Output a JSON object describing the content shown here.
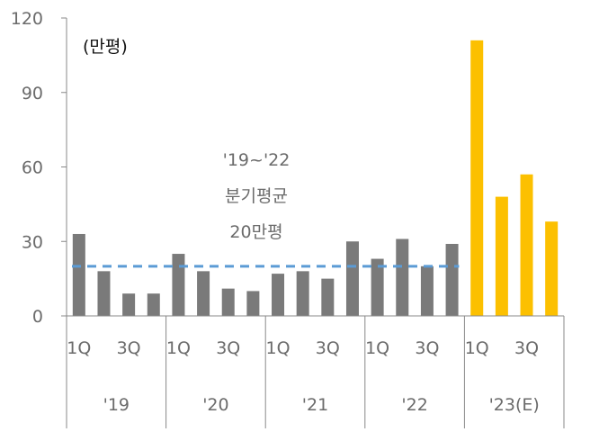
{
  "chart_data": {
    "type": "bar",
    "unit_label": "(만평)",
    "yticks": [
      "0",
      "30",
      "60",
      "90",
      "120"
    ],
    "ylim": [
      0,
      120
    ],
    "grid": false,
    "categories": [
      "1Q",
      "2Q",
      "3Q",
      "4Q",
      "1Q",
      "2Q",
      "3Q",
      "4Q",
      "1Q",
      "2Q",
      "3Q",
      "4Q",
      "1Q",
      "2Q",
      "3Q",
      "4Q",
      "1Q",
      "2Q",
      "3Q",
      "4Q"
    ],
    "xtick_labels": [
      "1Q",
      "",
      "3Q",
      "",
      "1Q",
      "",
      "3Q",
      "",
      "1Q",
      "",
      "3Q",
      "",
      "1Q",
      "",
      "3Q",
      "",
      "1Q",
      "",
      "3Q",
      ""
    ],
    "year_groups": [
      {
        "label": "'19",
        "start": 0,
        "count": 4
      },
      {
        "label": "'20",
        "start": 4,
        "count": 4
      },
      {
        "label": "'21",
        "start": 8,
        "count": 4
      },
      {
        "label": "'22",
        "start": 12,
        "count": 4
      },
      {
        "label": "'23(E)",
        "start": 16,
        "count": 4
      }
    ],
    "values": [
      33,
      18,
      9,
      9,
      25,
      18,
      11,
      10,
      17,
      18,
      15,
      30,
      23,
      31,
      20,
      29,
      111,
      48,
      57,
      38
    ],
    "bar_colors": {
      "actual": "#7a7a7a",
      "estimate": "#fcc000"
    },
    "estimate_from_index": 16,
    "average": {
      "value": 20,
      "color": "#5b9bd5",
      "label_lines": [
        "'19~'22",
        "분기평균",
        "20만평"
      ]
    }
  }
}
